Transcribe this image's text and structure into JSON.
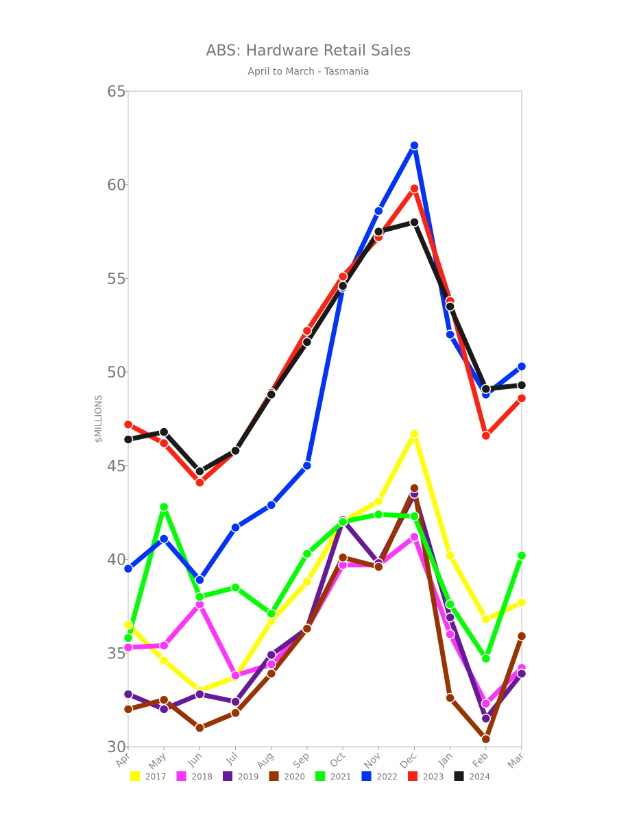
{
  "chart_data": {
    "type": "line",
    "title": "ABS: Hardware Retail Sales",
    "subtitle": "April to March - Tasmania",
    "xlabel": "",
    "ylabel": "$MILLIONS",
    "ylim": [
      30,
      65
    ],
    "yticks": [
      30,
      35,
      40,
      45,
      50,
      55,
      60,
      65
    ],
    "grid": false,
    "legend_position": "bottom",
    "categories": [
      "Apr",
      "May",
      "Jun",
      "Jul",
      "Aug",
      "Sep",
      "Oct",
      "Nov",
      "Dec",
      "Jan",
      "Feb",
      "Mar"
    ],
    "series": [
      {
        "name": "2017",
        "color": "#ffff00",
        "values": [
          36.5,
          34.6,
          33.0,
          33.7,
          36.7,
          38.8,
          42.0,
          43.1,
          46.7,
          40.2,
          36.8,
          37.7
        ]
      },
      {
        "name": "2018",
        "color": "#ff33ff",
        "values": [
          35.3,
          35.4,
          37.6,
          33.8,
          34.4,
          36.3,
          39.7,
          39.7,
          41.2,
          36.0,
          32.3,
          34.2
        ]
      },
      {
        "name": "2019",
        "color": "#661a99",
        "values": [
          32.8,
          32.0,
          32.8,
          32.4,
          34.9,
          36.3,
          42.1,
          39.8,
          43.5,
          36.9,
          31.5,
          33.9
        ]
      },
      {
        "name": "2020",
        "color": "#993300",
        "values": [
          32.0,
          32.5,
          31.0,
          31.8,
          33.9,
          36.3,
          40.1,
          39.6,
          43.8,
          32.6,
          30.4,
          35.9
        ]
      },
      {
        "name": "2021",
        "color": "#00ff00",
        "values": [
          35.8,
          42.8,
          38.0,
          38.5,
          37.1,
          40.3,
          42.0,
          42.4,
          42.3,
          37.6,
          34.7,
          40.2
        ]
      },
      {
        "name": "2022",
        "color": "#0033ff",
        "values": [
          39.5,
          41.1,
          38.9,
          41.7,
          42.9,
          45.0,
          54.5,
          58.6,
          62.1,
          52.0,
          48.8,
          50.3
        ]
      },
      {
        "name": "2023",
        "color": "#ff2211",
        "values": [
          47.2,
          46.2,
          44.1,
          45.8,
          48.9,
          52.2,
          55.1,
          57.2,
          59.8,
          53.8,
          46.6,
          48.6
        ]
      },
      {
        "name": "2024",
        "color": "#1a1a1a",
        "values": [
          46.4,
          46.8,
          44.7,
          45.8,
          48.8,
          51.6,
          54.6,
          57.5,
          58.0,
          53.5,
          49.1,
          49.3
        ]
      }
    ]
  }
}
